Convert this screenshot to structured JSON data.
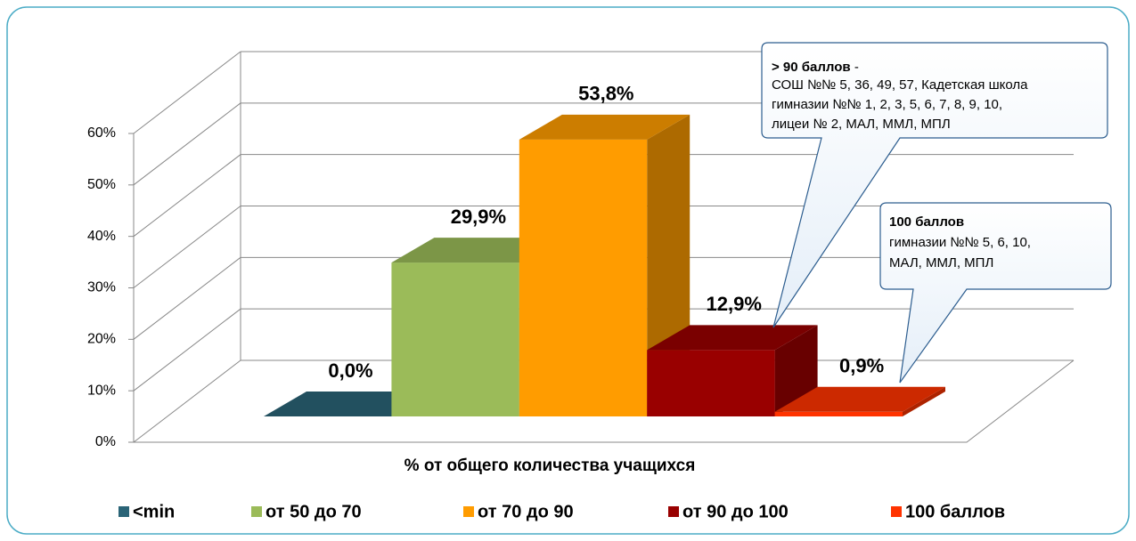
{
  "chart_data": {
    "type": "bar3d",
    "x_label": "% от общего количества учащихся",
    "ylim": [
      0,
      60
    ],
    "yticks": [
      {
        "value": 0,
        "label": "0%"
      },
      {
        "value": 10,
        "label": "10%"
      },
      {
        "value": 20,
        "label": "20%"
      },
      {
        "value": 30,
        "label": "30%"
      },
      {
        "value": 40,
        "label": "40%"
      },
      {
        "value": 50,
        "label": "50%"
      },
      {
        "value": 60,
        "label": "60%"
      }
    ],
    "grid": true,
    "legend": "bottom",
    "series": [
      {
        "name": "<min",
        "color": "#2a6477",
        "values": [
          0.0
        ],
        "value_labels": [
          "0,0%"
        ]
      },
      {
        "name": "от 50 до 70",
        "color": "#9bbb59",
        "values": [
          29.9
        ],
        "value_labels": [
          "29,9%"
        ]
      },
      {
        "name": "от 70 до 90",
        "color": "#ff9c00",
        "values": [
          53.8
        ],
        "value_labels": [
          "53,8%"
        ]
      },
      {
        "name": "от 90 до 100",
        "color": "#990000",
        "values": [
          12.9
        ],
        "value_labels": [
          "12,9%"
        ]
      },
      {
        "name": "100 баллов",
        "color": "#ff3300",
        "values": [
          0.9
        ],
        "value_labels": [
          "0,9%"
        ]
      }
    ],
    "annotations": [
      {
        "title": "> 90 баллов",
        "separator": "-",
        "lines": [
          "СОШ №№ 5, 36, 49, 57, Кадетская школа",
          "гимназии №№ 1, 2, 3, 5, 6, 7, 8, 9, 10,",
          "лицеи № 2, МАЛ, ММЛ, МПЛ"
        ]
      },
      {
        "title": "100 баллов",
        "lines": [
          "гимназии №№ 5, 6, 10,",
          "МАЛ, ММЛ, МПЛ"
        ]
      }
    ]
  }
}
